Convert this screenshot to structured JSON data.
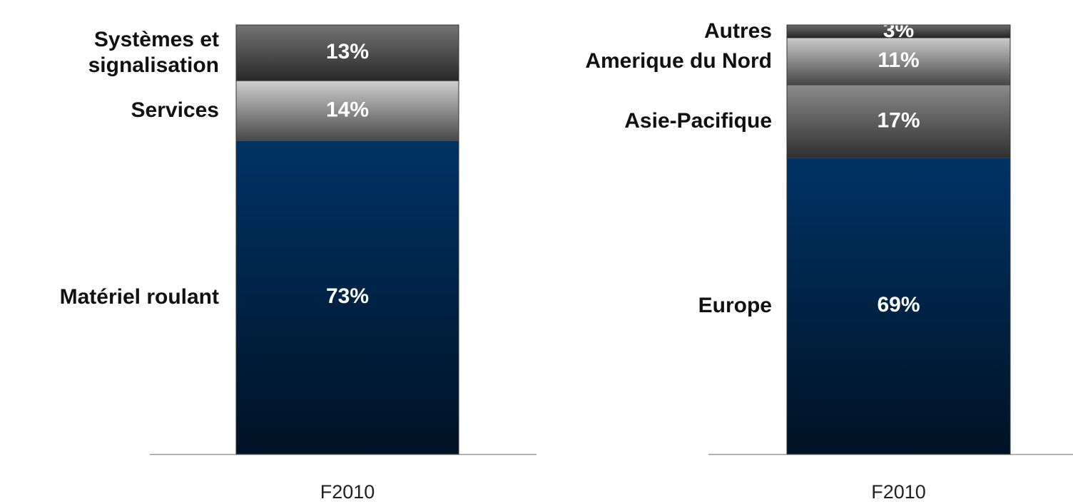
{
  "chart_data": [
    {
      "type": "stacked_bar",
      "categories": [
        "F2010"
      ],
      "series": [
        {
          "name": "Matériel roulant",
          "color": "#003366",
          "values": [
            73
          ],
          "value_labels": [
            "73%"
          ]
        },
        {
          "name": "Services",
          "color": "#cfcfcf",
          "values": [
            14
          ],
          "value_labels": [
            "14%"
          ]
        },
        {
          "name": "Systèmes et signalisation",
          "color": "#737373",
          "values": [
            13
          ],
          "value_labels": [
            "13%"
          ]
        }
      ]
    },
    {
      "type": "stacked_bar",
      "categories": [
        "F2010"
      ],
      "series": [
        {
          "name": "Europe",
          "color": "#003366",
          "values": [
            69
          ],
          "value_labels": [
            "69%"
          ]
        },
        {
          "name": "Asie-Pacifique",
          "color": "#8a8a8a",
          "values": [
            17
          ],
          "value_labels": [
            "17%"
          ]
        },
        {
          "name": "Amerique du Nord",
          "color": "#cacaca",
          "values": [
            11
          ],
          "value_labels": [
            "11%"
          ]
        },
        {
          "name": "Autres",
          "color": "#6a6a6a",
          "values": [
            3
          ],
          "value_labels": [
            "3%"
          ]
        }
      ]
    }
  ]
}
